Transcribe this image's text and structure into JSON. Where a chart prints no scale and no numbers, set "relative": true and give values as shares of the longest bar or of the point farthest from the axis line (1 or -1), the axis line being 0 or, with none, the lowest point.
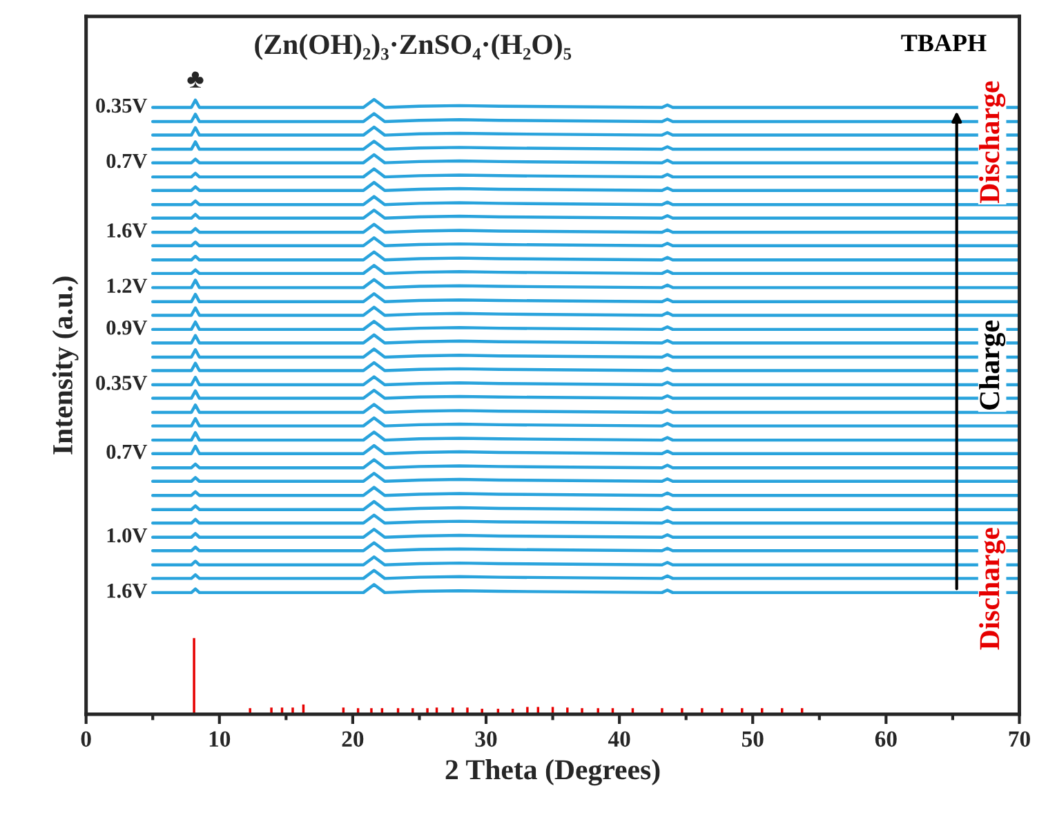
{
  "chart_data": {
    "type": "line",
    "relative": true,
    "tick_labels": "x",
    "title": "(Zn(OH)₂)₃·ZnSO₄·(H₂O)₅",
    "xlabel": "2 Theta (Degrees)",
    "ylabel": "Intensity (a.u.)",
    "xlim": [
      0,
      70
    ],
    "xticks": [
      0,
      10,
      20,
      30,
      40,
      50,
      60,
      70
    ],
    "annotations": [
      {
        "text": "♣",
        "x": 8.2,
        "y": 1.0
      },
      "TBAPH",
      "Discharge",
      "Charge",
      "Discharge"
    ],
    "x": [
      5,
      7.9,
      8.2,
      8.5,
      20.8,
      21.6,
      22.4,
      25,
      28,
      31,
      43.2,
      43.6,
      44,
      70
    ],
    "series": [
      {
        "name": "0.35V",
        "color": "#29a3dc",
        "values": [
          0.987,
          0.987,
          0.999,
          0.987,
          0.987,
          1.0,
          0.987,
          0.989,
          0.99,
          0.989,
          0.987,
          0.991,
          0.987,
          0.987
        ]
      },
      {
        "color": "#29a3dc",
        "values": [
          0.964,
          0.964,
          0.976,
          0.964,
          0.964,
          0.977,
          0.964,
          0.966,
          0.967,
          0.966,
          0.964,
          0.968,
          0.964,
          0.964
        ]
      },
      {
        "color": "#29a3dc",
        "values": [
          0.942,
          0.942,
          0.954,
          0.942,
          0.942,
          0.955,
          0.942,
          0.944,
          0.945,
          0.944,
          0.942,
          0.946,
          0.942,
          0.942
        ]
      },
      {
        "color": "#29a3dc",
        "values": [
          0.919,
          0.919,
          0.931,
          0.919,
          0.919,
          0.932,
          0.919,
          0.921,
          0.922,
          0.921,
          0.919,
          0.923,
          0.919,
          0.919
        ]
      },
      {
        "name": "0.7V",
        "color": "#29a3dc",
        "values": [
          0.897,
          0.897,
          0.903,
          0.897,
          0.897,
          0.91,
          0.897,
          0.899,
          0.9,
          0.899,
          0.897,
          0.901,
          0.897,
          0.897
        ]
      },
      {
        "color": "#29a3dc",
        "values": [
          0.874,
          0.874,
          0.88,
          0.874,
          0.874,
          0.887,
          0.874,
          0.876,
          0.877,
          0.876,
          0.874,
          0.878,
          0.874,
          0.874
        ]
      },
      {
        "color": "#29a3dc",
        "values": [
          0.852,
          0.852,
          0.858,
          0.852,
          0.852,
          0.865,
          0.852,
          0.854,
          0.855,
          0.854,
          0.852,
          0.856,
          0.852,
          0.852
        ]
      },
      {
        "color": "#29a3dc",
        "values": [
          0.829,
          0.829,
          0.835,
          0.829,
          0.829,
          0.842,
          0.829,
          0.831,
          0.832,
          0.831,
          0.829,
          0.833,
          0.829,
          0.829
        ]
      },
      {
        "color": "#29a3dc",
        "values": [
          0.807,
          0.807,
          0.813,
          0.807,
          0.807,
          0.82,
          0.807,
          0.809,
          0.81,
          0.809,
          0.807,
          0.811,
          0.807,
          0.807
        ]
      },
      {
        "name": "1.6V",
        "color": "#29a3dc",
        "values": [
          0.784,
          0.784,
          0.79,
          0.784,
          0.784,
          0.797,
          0.784,
          0.786,
          0.787,
          0.786,
          0.784,
          0.788,
          0.784,
          0.784
        ]
      },
      {
        "color": "#29a3dc",
        "values": [
          0.762,
          0.762,
          0.768,
          0.762,
          0.762,
          0.775,
          0.762,
          0.764,
          0.765,
          0.764,
          0.762,
          0.766,
          0.762,
          0.762
        ]
      },
      {
        "color": "#29a3dc",
        "values": [
          0.739,
          0.739,
          0.745,
          0.739,
          0.739,
          0.752,
          0.739,
          0.741,
          0.742,
          0.741,
          0.739,
          0.743,
          0.739,
          0.739
        ]
      },
      {
        "color": "#29a3dc",
        "values": [
          0.717,
          0.717,
          0.723,
          0.717,
          0.717,
          0.73,
          0.717,
          0.719,
          0.72,
          0.719,
          0.717,
          0.721,
          0.717,
          0.717
        ]
      },
      {
        "name": "1.2V",
        "color": "#29a3dc",
        "values": [
          0.694,
          0.694,
          0.706,
          0.694,
          0.694,
          0.707,
          0.694,
          0.696,
          0.697,
          0.696,
          0.694,
          0.698,
          0.694,
          0.694
        ]
      },
      {
        "color": "#29a3dc",
        "values": [
          0.671,
          0.671,
          0.683,
          0.671,
          0.671,
          0.684,
          0.671,
          0.673,
          0.674,
          0.673,
          0.671,
          0.675,
          0.671,
          0.671
        ]
      },
      {
        "color": "#29a3dc",
        "values": [
          0.649,
          0.649,
          0.661,
          0.649,
          0.649,
          0.662,
          0.649,
          0.651,
          0.652,
          0.651,
          0.649,
          0.653,
          0.649,
          0.649
        ]
      },
      {
        "name": "0.9V",
        "color": "#29a3dc",
        "values": [
          0.626,
          0.626,
          0.638,
          0.626,
          0.626,
          0.639,
          0.626,
          0.628,
          0.629,
          0.628,
          0.626,
          0.63,
          0.626,
          0.626
        ]
      },
      {
        "color": "#29a3dc",
        "values": [
          0.604,
          0.604,
          0.616,
          0.604,
          0.604,
          0.617,
          0.604,
          0.606,
          0.607,
          0.606,
          0.604,
          0.608,
          0.604,
          0.604
        ]
      },
      {
        "color": "#29a3dc",
        "values": [
          0.581,
          0.581,
          0.593,
          0.581,
          0.581,
          0.594,
          0.581,
          0.583,
          0.584,
          0.583,
          0.581,
          0.585,
          0.581,
          0.581
        ]
      },
      {
        "color": "#29a3dc",
        "values": [
          0.559,
          0.559,
          0.571,
          0.559,
          0.559,
          0.572,
          0.559,
          0.561,
          0.562,
          0.561,
          0.559,
          0.563,
          0.559,
          0.559
        ]
      },
      {
        "name": "0.35V",
        "color": "#29a3dc",
        "values": [
          0.536,
          0.536,
          0.548,
          0.536,
          0.536,
          0.549,
          0.536,
          0.538,
          0.539,
          0.538,
          0.536,
          0.54,
          0.536,
          0.536
        ]
      },
      {
        "color": "#29a3dc",
        "values": [
          0.514,
          0.514,
          0.526,
          0.514,
          0.514,
          0.527,
          0.514,
          0.516,
          0.517,
          0.516,
          0.514,
          0.518,
          0.514,
          0.514
        ]
      },
      {
        "color": "#29a3dc",
        "values": [
          0.491,
          0.491,
          0.503,
          0.491,
          0.491,
          0.504,
          0.491,
          0.493,
          0.494,
          0.493,
          0.491,
          0.495,
          0.491,
          0.491
        ]
      },
      {
        "color": "#29a3dc",
        "values": [
          0.469,
          0.469,
          0.481,
          0.469,
          0.469,
          0.482,
          0.469,
          0.471,
          0.472,
          0.471,
          0.469,
          0.473,
          0.469,
          0.469
        ]
      },
      {
        "color": "#29a3dc",
        "values": [
          0.446,
          0.446,
          0.458,
          0.446,
          0.446,
          0.459,
          0.446,
          0.448,
          0.449,
          0.448,
          0.446,
          0.45,
          0.446,
          0.446
        ]
      },
      {
        "name": "0.7V",
        "color": "#29a3dc",
        "values": [
          0.424,
          0.424,
          0.436,
          0.424,
          0.424,
          0.437,
          0.424,
          0.426,
          0.427,
          0.426,
          0.424,
          0.428,
          0.424,
          0.424
        ]
      },
      {
        "color": "#29a3dc",
        "values": [
          0.401,
          0.401,
          0.407,
          0.401,
          0.401,
          0.414,
          0.401,
          0.403,
          0.404,
          0.403,
          0.401,
          0.405,
          0.401,
          0.401
        ]
      },
      {
        "color": "#29a3dc",
        "values": [
          0.379,
          0.379,
          0.385,
          0.379,
          0.379,
          0.392,
          0.379,
          0.381,
          0.382,
          0.381,
          0.379,
          0.383,
          0.379,
          0.379
        ]
      },
      {
        "color": "#29a3dc",
        "values": [
          0.356,
          0.356,
          0.362,
          0.356,
          0.356,
          0.369,
          0.356,
          0.358,
          0.359,
          0.358,
          0.356,
          0.36,
          0.356,
          0.356
        ]
      },
      {
        "color": "#29a3dc",
        "values": [
          0.333,
          0.333,
          0.339,
          0.333,
          0.333,
          0.346,
          0.333,
          0.335,
          0.336,
          0.335,
          0.333,
          0.337,
          0.333,
          0.333
        ]
      },
      {
        "color": "#29a3dc",
        "values": [
          0.311,
          0.311,
          0.317,
          0.311,
          0.311,
          0.324,
          0.311,
          0.313,
          0.314,
          0.313,
          0.311,
          0.315,
          0.311,
          0.311
        ]
      },
      {
        "name": "1.0V",
        "color": "#29a3dc",
        "values": [
          0.288,
          0.288,
          0.294,
          0.288,
          0.288,
          0.301,
          0.288,
          0.29,
          0.291,
          0.29,
          0.288,
          0.292,
          0.288,
          0.288
        ]
      },
      {
        "color": "#29a3dc",
        "values": [
          0.266,
          0.266,
          0.272,
          0.266,
          0.266,
          0.279,
          0.266,
          0.268,
          0.269,
          0.268,
          0.266,
          0.27,
          0.266,
          0.266
        ]
      },
      {
        "color": "#29a3dc",
        "values": [
          0.243,
          0.243,
          0.249,
          0.243,
          0.243,
          0.256,
          0.243,
          0.245,
          0.246,
          0.245,
          0.243,
          0.247,
          0.243,
          0.243
        ]
      },
      {
        "color": "#29a3dc",
        "values": [
          0.221,
          0.221,
          0.227,
          0.221,
          0.221,
          0.234,
          0.221,
          0.223,
          0.224,
          0.223,
          0.221,
          0.225,
          0.221,
          0.221
        ]
      },
      {
        "name": "1.6V",
        "color": "#29a3dc",
        "values": [
          0.198,
          0.198,
          0.204,
          0.198,
          0.198,
          0.211,
          0.198,
          0.2,
          0.201,
          0.2,
          0.198,
          0.202,
          0.198,
          0.198
        ]
      },
      {
        "type": "bar",
        "color": "#e60000",
        "x": [
          8.1,
          12.3,
          13.9,
          14.7,
          15.5,
          16.3,
          19.3,
          20.4,
          21.4,
          22.2,
          23.4,
          24.5,
          25.6,
          26.3,
          27.5,
          28.6,
          29.7,
          30.9,
          32.0,
          33.1,
          33.9,
          35.0,
          36.1,
          37.2,
          38.4,
          39.5,
          41.0,
          43.2,
          44.7,
          46.2,
          47.7,
          49.2,
          50.7,
          52.2,
          53.7
        ],
        "values": [
          0.124,
          0.01,
          0.011,
          0.011,
          0.011,
          0.016,
          0.011,
          0.01,
          0.01,
          0.01,
          0.01,
          0.01,
          0.01,
          0.011,
          0.011,
          0.011,
          0.009,
          0.009,
          0.009,
          0.012,
          0.012,
          0.012,
          0.011,
          0.01,
          0.01,
          0.01,
          0.01,
          0.01,
          0.01,
          0.01,
          0.01,
          0.01,
          0.01,
          0.01,
          0.01
        ]
      }
    ]
  }
}
